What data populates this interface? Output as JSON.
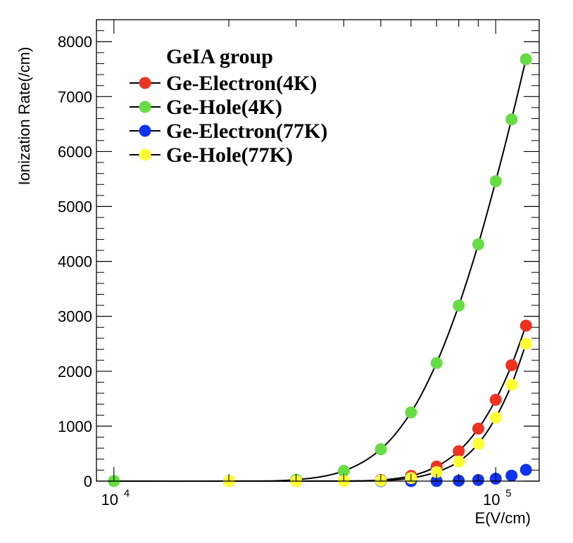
{
  "chart_data": {
    "type": "scatter",
    "title": "",
    "xlabel": "E(V/cm)",
    "ylabel": "Ionization Rate(/cm)",
    "x_scale": "log",
    "xlim": [
      9000,
      130000
    ],
    "ylim": [
      0,
      8400
    ],
    "y_ticks": [
      0,
      1000,
      2000,
      3000,
      4000,
      5000,
      6000,
      7000,
      8000
    ],
    "x_tick_labels": [
      {
        "value": 10000,
        "base": "10",
        "exp": "4"
      },
      {
        "value": 100000,
        "base": "10",
        "exp": "5"
      }
    ],
    "grid": false,
    "legend": {
      "title": "GeIA group",
      "position": "top-left"
    },
    "series": [
      {
        "name": "Ge-Electron(4K)",
        "color": "#ee3322",
        "connected": true,
        "points": [
          [
            20000,
            0
          ],
          [
            30000,
            0
          ],
          [
            40000,
            2
          ],
          [
            50000,
            20
          ],
          [
            60000,
            95
          ],
          [
            70000,
            265
          ],
          [
            80000,
            545
          ],
          [
            90000,
            955
          ],
          [
            100000,
            1480
          ],
          [
            110000,
            2110
          ],
          [
            120000,
            2830
          ]
        ]
      },
      {
        "name": "Ge-Hole(4K)",
        "color": "#66dd44",
        "connected": true,
        "points": [
          [
            10000,
            0
          ],
          [
            20000,
            0
          ],
          [
            30000,
            25
          ],
          [
            40000,
            185
          ],
          [
            50000,
            580
          ],
          [
            60000,
            1250
          ],
          [
            70000,
            2150
          ],
          [
            80000,
            3195
          ],
          [
            90000,
            4310
          ],
          [
            100000,
            5460
          ],
          [
            110000,
            6585
          ],
          [
            120000,
            7680
          ]
        ]
      },
      {
        "name": "Ge-Electron(77K)",
        "color": "#1133ee",
        "connected": false,
        "points": [
          [
            50000,
            0
          ],
          [
            60000,
            0
          ],
          [
            70000,
            2
          ],
          [
            80000,
            8
          ],
          [
            90000,
            20
          ],
          [
            100000,
            45
          ],
          [
            110000,
            100
          ],
          [
            120000,
            205
          ]
        ]
      },
      {
        "name": "Ge-Hole(77K)",
        "color": "#ffff33",
        "connected": true,
        "points": [
          [
            20000,
            0
          ],
          [
            30000,
            0
          ],
          [
            40000,
            0
          ],
          [
            50000,
            10
          ],
          [
            60000,
            55
          ],
          [
            70000,
            165
          ],
          [
            80000,
            355
          ],
          [
            90000,
            680
          ],
          [
            100000,
            1155
          ],
          [
            110000,
            1755
          ],
          [
            120000,
            2500
          ]
        ]
      }
    ]
  }
}
